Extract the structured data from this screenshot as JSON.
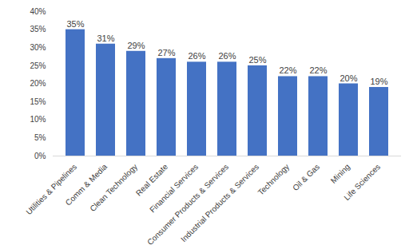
{
  "chart_data": {
    "type": "bar",
    "categories": [
      "Utilities & Pipelines",
      "Comm & Media",
      "Clean Technology",
      "Real Estate",
      "Financial Services",
      "Consumer Products & Services",
      "Industrial Products & Services",
      "Technology",
      "Oil & Gas",
      "Mining",
      "Life Sciences"
    ],
    "values": [
      35,
      31,
      29,
      27,
      26,
      26,
      25,
      22,
      22,
      20,
      19
    ],
    "value_labels": [
      "35%",
      "31%",
      "29%",
      "27%",
      "26%",
      "26%",
      "25%",
      "22%",
      "22%",
      "20%",
      "19%"
    ],
    "color": "#4472c4",
    "ylim": [
      0,
      40
    ],
    "yticks": [
      {
        "value": 0,
        "label": "0%"
      },
      {
        "value": 5,
        "label": "5%"
      },
      {
        "value": 10,
        "label": "10%"
      },
      {
        "value": 15,
        "label": "15%"
      },
      {
        "value": 20,
        "label": "20%"
      },
      {
        "value": 25,
        "label": "25%"
      },
      {
        "value": 30,
        "label": "30%"
      },
      {
        "value": 35,
        "label": "35%"
      },
      {
        "value": 40,
        "label": "40%"
      }
    ],
    "grid": false,
    "data_labels": true
  }
}
